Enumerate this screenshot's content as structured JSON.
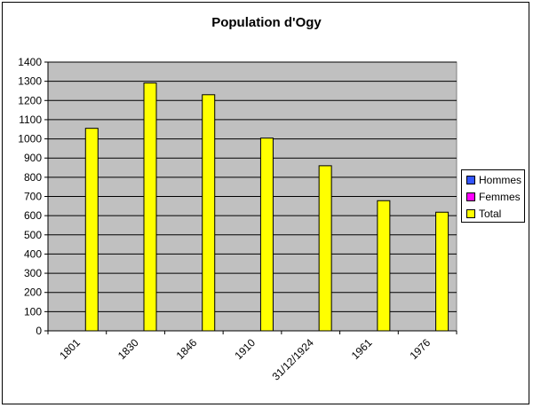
{
  "chart_data": {
    "type": "bar",
    "title": "Population d'Ogy",
    "categories": [
      "1801",
      "1830",
      "1846",
      "1910",
      "31/12/1924",
      "1961",
      "1976"
    ],
    "series": [
      {
        "name": "Hommes",
        "color": "#3355FF",
        "values": [
          null,
          null,
          null,
          null,
          null,
          null,
          null
        ]
      },
      {
        "name": "Femmes",
        "color": "#FF00FF",
        "values": [
          null,
          null,
          null,
          null,
          null,
          null,
          null
        ]
      },
      {
        "name": "Total",
        "color": "#FFFF00",
        "values": [
          1055,
          1291,
          1230,
          1004,
          860,
          678,
          618
        ]
      }
    ],
    "ylim": [
      0,
      1400
    ],
    "ytick_step": 100,
    "grid": true,
    "legend_position": "right",
    "plot_background": "#C0C0C0"
  }
}
